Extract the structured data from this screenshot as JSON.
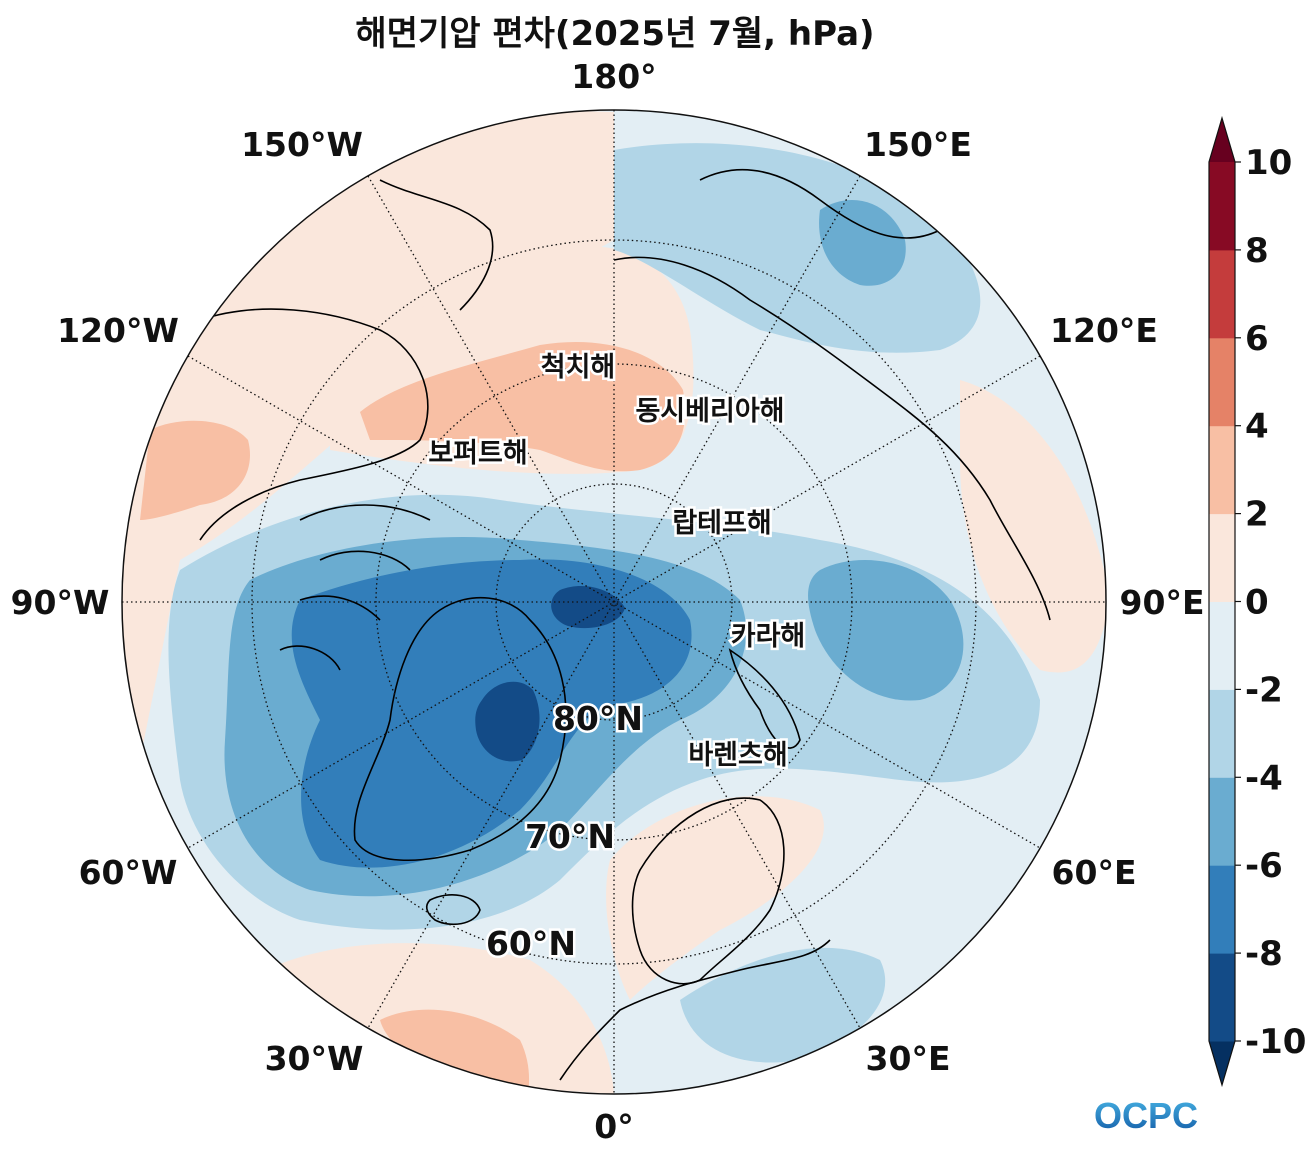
{
  "title": "해면기압 편차(2025년 7월, hPa)",
  "map": {
    "projection": "north-polar-stereographic",
    "lon_labels": {
      "lon_0": "0°",
      "lon_30E": "30°E",
      "lon_60E": "60°E",
      "lon_90E": "90°E",
      "lon_120E": "120°E",
      "lon_150E": "150°E",
      "lon_180": "180°",
      "lon_150W": "150°W",
      "lon_120W": "120°W",
      "lon_90W": "90°W",
      "lon_60W": "60°W",
      "lon_30W": "30°W"
    },
    "lat_labels": {
      "lat_60": "60°N",
      "lat_70": "70°N",
      "lat_80": "80°N"
    },
    "seas": {
      "chukchi": "척치해",
      "east_siberian": "동시베리아해",
      "beaufort": "보퍼트해",
      "laptev": "랍테프해",
      "kara": "카라해",
      "barents": "바렌츠해"
    }
  },
  "colorbar": {
    "unit": "hPa",
    "ticks": [
      "10",
      "8",
      "6",
      "4",
      "2",
      "0",
      "-2",
      "-4",
      "-6",
      "-8",
      "-10"
    ],
    "colors": [
      "#053061",
      "#134b87",
      "#327eba",
      "#6aacd0",
      "#b1d5e7",
      "#e3eef4",
      "#fae7dc",
      "#f8bfa4",
      "#e58267",
      "#c43c3c",
      "#870a24",
      "#67001f"
    ]
  },
  "logo": {
    "text": "OCPC"
  }
}
